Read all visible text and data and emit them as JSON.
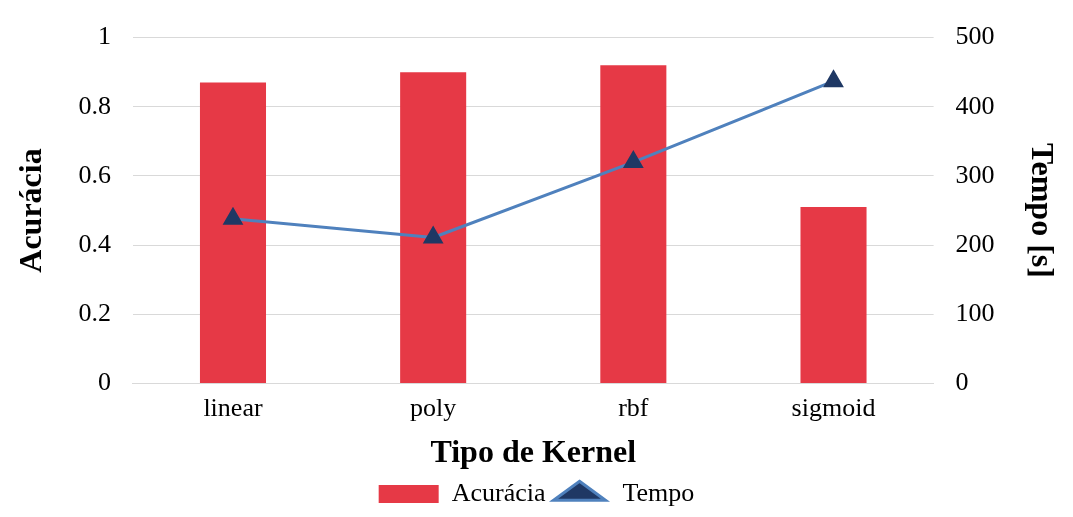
{
  "chart_data": {
    "type": "bar",
    "xlabel": "Tipo de Kernel",
    "ylabel": "Acurácia",
    "y2label": "Tempo [s]",
    "categories": [
      "linear",
      "poly",
      "rbf",
      "sigmoid"
    ],
    "series": [
      {
        "name": "Acurácia",
        "color": "#e63946",
        "values": [
          0.87,
          0.9,
          0.92,
          0.51
        ]
      },
      {
        "name": "Tempo",
        "type": "line",
        "axis": "y2",
        "color": "#4f81bd",
        "marker": "triangle",
        "values": [
          238,
          211,
          320,
          437
        ]
      }
    ],
    "ylim": [
      0,
      1
    ],
    "yticks": [
      0,
      0.2,
      0.4,
      0.6,
      0.8,
      1
    ],
    "y2lim": [
      0,
      500
    ],
    "y2ticks": [
      0,
      100,
      200,
      300,
      400,
      500
    ],
    "grid": "y",
    "legend": "bottom"
  }
}
